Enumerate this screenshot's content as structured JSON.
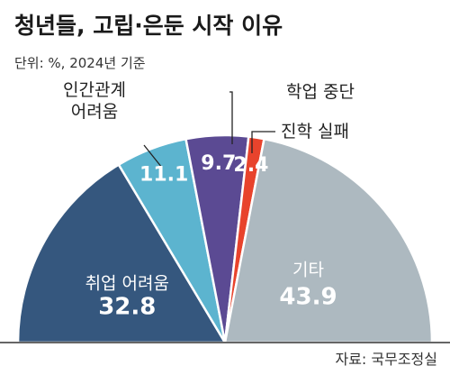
{
  "title": "청년들, 고립·은둔 시작 이유",
  "unit_note": "단위: %, 2024년 기준",
  "source": "자료: 국무조정실",
  "chart_data": {
    "type": "pie",
    "shape": "half-donut",
    "categories": [
      "취업 어려움",
      "인간관계 어려움",
      "학업 중단",
      "진학 실패",
      "기타"
    ],
    "category_lines": [
      [
        "취업 어려움"
      ],
      [
        "인간관계",
        "어려움"
      ],
      [
        "학업 중단"
      ],
      [
        "진학 실패"
      ],
      [
        "기타"
      ]
    ],
    "values": [
      32.8,
      11.1,
      9.7,
      2.4,
      43.9
    ],
    "value_labels": [
      "32.8",
      "11.1",
      "9.7",
      "2.4",
      "43.9"
    ],
    "colors": [
      "#35577e",
      "#5cb4cf",
      "#5b4a93",
      "#e8432c",
      "#adb9c0"
    ],
    "legend": "none"
  }
}
